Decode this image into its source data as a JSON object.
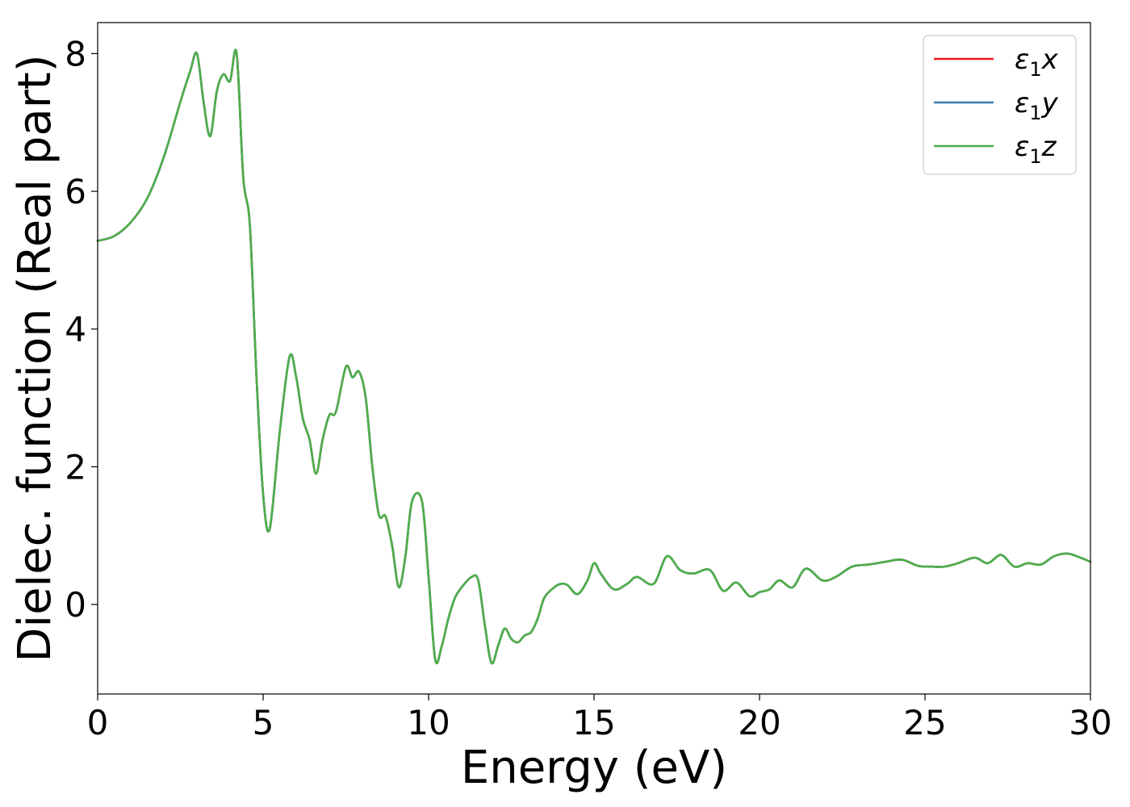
{
  "chart_data": {
    "type": "line",
    "xlabel": "Energy (eV)",
    "ylabel": "Dielec. function (Real part)",
    "xlim": [
      0,
      30
    ],
    "ylim": [
      -1.3,
      8.45
    ],
    "xticks": [
      0,
      5,
      10,
      15,
      20,
      25,
      30
    ],
    "xtick_labels": [
      "0",
      "5",
      "10",
      "15",
      "20",
      "25",
      "30"
    ],
    "yticks": [
      0,
      2,
      4,
      6,
      8
    ],
    "ytick_labels": [
      "0",
      "2",
      "4",
      "6",
      "8"
    ],
    "grid": false,
    "legend_position": "top-right",
    "x": [
      0,
      0.5,
      1.0,
      1.5,
      2.0,
      2.5,
      2.8,
      3.0,
      3.2,
      3.4,
      3.6,
      3.8,
      4.0,
      4.2,
      4.4,
      4.6,
      4.8,
      5.0,
      5.2,
      5.5,
      5.8,
      6.0,
      6.2,
      6.4,
      6.6,
      6.8,
      7.0,
      7.2,
      7.5,
      7.7,
      7.9,
      8.1,
      8.3,
      8.5,
      8.7,
      8.9,
      9.1,
      9.3,
      9.5,
      9.8,
      10.0,
      10.2,
      10.4,
      10.6,
      10.8,
      11.0,
      11.3,
      11.5,
      11.7,
      11.9,
      12.1,
      12.3,
      12.5,
      12.7,
      12.9,
      13.1,
      13.3,
      13.5,
      13.8,
      14.0,
      14.2,
      14.5,
      14.8,
      15.0,
      15.2,
      15.6,
      16.0,
      16.3,
      16.8,
      17.2,
      17.6,
      18.0,
      18.5,
      18.9,
      19.3,
      19.7,
      20.0,
      20.3,
      20.6,
      21.0,
      21.4,
      21.9,
      22.3,
      22.8,
      23.3,
      23.8,
      24.3,
      24.8,
      25.2,
      25.6,
      26.0,
      26.5,
      26.9,
      27.3,
      27.7,
      28.1,
      28.5,
      28.9,
      29.3,
      29.7,
      30.0
    ],
    "series": [
      {
        "name": "ε1x",
        "color": "#e41a1c",
        "values": [
          5.28,
          5.35,
          5.55,
          5.9,
          6.5,
          7.3,
          7.75,
          8.0,
          7.3,
          6.8,
          7.45,
          7.7,
          7.6,
          8.0,
          6.2,
          5.5,
          3.3,
          1.6,
          1.1,
          2.5,
          3.6,
          3.3,
          2.7,
          2.4,
          1.9,
          2.4,
          2.75,
          2.8,
          3.45,
          3.3,
          3.38,
          3.0,
          2.0,
          1.3,
          1.28,
          0.85,
          0.25,
          0.7,
          1.5,
          1.5,
          0.4,
          -0.8,
          -0.6,
          -0.2,
          0.1,
          0.25,
          0.4,
          0.35,
          -0.3,
          -0.85,
          -0.6,
          -0.35,
          -0.5,
          -0.55,
          -0.45,
          -0.4,
          -0.2,
          0.1,
          0.25,
          0.3,
          0.28,
          0.15,
          0.35,
          0.6,
          0.45,
          0.22,
          0.3,
          0.4,
          0.3,
          0.7,
          0.5,
          0.45,
          0.5,
          0.2,
          0.32,
          0.12,
          0.18,
          0.22,
          0.35,
          0.25,
          0.52,
          0.35,
          0.4,
          0.55,
          0.58,
          0.62,
          0.65,
          0.56,
          0.55,
          0.55,
          0.6,
          0.68,
          0.6,
          0.72,
          0.55,
          0.6,
          0.58,
          0.7,
          0.74,
          0.68,
          0.62
        ]
      },
      {
        "name": "ε1y",
        "color": "#377eb8",
        "values": [
          5.28,
          5.35,
          5.55,
          5.9,
          6.5,
          7.3,
          7.75,
          8.0,
          7.3,
          6.8,
          7.45,
          7.7,
          7.6,
          8.0,
          6.2,
          5.5,
          3.3,
          1.6,
          1.1,
          2.5,
          3.6,
          3.3,
          2.7,
          2.4,
          1.9,
          2.4,
          2.75,
          2.8,
          3.45,
          3.3,
          3.38,
          3.0,
          2.0,
          1.3,
          1.28,
          0.85,
          0.25,
          0.7,
          1.5,
          1.5,
          0.4,
          -0.8,
          -0.6,
          -0.2,
          0.1,
          0.25,
          0.4,
          0.35,
          -0.3,
          -0.85,
          -0.6,
          -0.35,
          -0.5,
          -0.55,
          -0.45,
          -0.4,
          -0.2,
          0.1,
          0.25,
          0.3,
          0.28,
          0.15,
          0.35,
          0.6,
          0.45,
          0.22,
          0.3,
          0.4,
          0.3,
          0.7,
          0.5,
          0.45,
          0.5,
          0.2,
          0.32,
          0.12,
          0.18,
          0.22,
          0.35,
          0.25,
          0.52,
          0.35,
          0.4,
          0.55,
          0.58,
          0.62,
          0.65,
          0.56,
          0.55,
          0.55,
          0.6,
          0.68,
          0.6,
          0.72,
          0.55,
          0.6,
          0.58,
          0.7,
          0.74,
          0.68,
          0.62
        ]
      },
      {
        "name": "ε1z",
        "color": "#4daf4a",
        "values": [
          5.28,
          5.35,
          5.55,
          5.9,
          6.5,
          7.3,
          7.75,
          8.0,
          7.3,
          6.8,
          7.45,
          7.7,
          7.6,
          8.0,
          6.2,
          5.5,
          3.3,
          1.6,
          1.1,
          2.5,
          3.6,
          3.3,
          2.7,
          2.4,
          1.9,
          2.4,
          2.75,
          2.8,
          3.45,
          3.3,
          3.38,
          3.0,
          2.0,
          1.3,
          1.28,
          0.85,
          0.25,
          0.7,
          1.5,
          1.5,
          0.4,
          -0.8,
          -0.6,
          -0.2,
          0.1,
          0.25,
          0.4,
          0.35,
          -0.3,
          -0.85,
          -0.6,
          -0.35,
          -0.5,
          -0.55,
          -0.45,
          -0.4,
          -0.2,
          0.1,
          0.25,
          0.3,
          0.28,
          0.15,
          0.35,
          0.6,
          0.45,
          0.22,
          0.3,
          0.4,
          0.3,
          0.7,
          0.5,
          0.45,
          0.5,
          0.2,
          0.32,
          0.12,
          0.18,
          0.22,
          0.35,
          0.25,
          0.52,
          0.35,
          0.4,
          0.55,
          0.58,
          0.62,
          0.65,
          0.56,
          0.55,
          0.55,
          0.6,
          0.68,
          0.6,
          0.72,
          0.55,
          0.6,
          0.58,
          0.7,
          0.74,
          0.68,
          0.62
        ]
      }
    ],
    "legend": [
      {
        "base": "ε",
        "sub": "1",
        "var": "x"
      },
      {
        "base": "ε",
        "sub": "1",
        "var": "y"
      },
      {
        "base": "ε",
        "sub": "1",
        "var": "z"
      }
    ]
  }
}
